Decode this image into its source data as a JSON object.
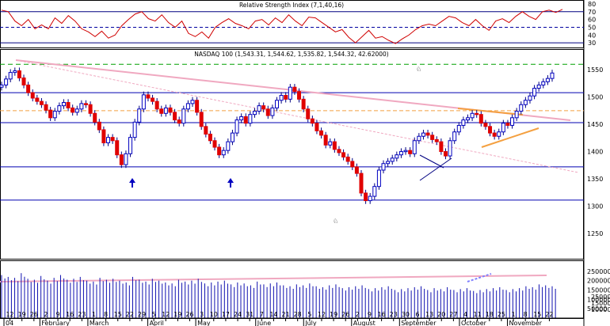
{
  "chart_data": [
    {
      "type": "line",
      "title": "Relative Strength Index (7,1,40,16)",
      "ylim": [
        25,
        82
      ],
      "y_ticks": [
        80,
        70,
        60,
        50,
        40,
        30
      ],
      "reference_lines": [
        70,
        50,
        30
      ],
      "series": [
        {
          "values": [
            72,
            70,
            58,
            52,
            60,
            48,
            53,
            48,
            62,
            55,
            65,
            58,
            48,
            44,
            38,
            45,
            36,
            40,
            52,
            60,
            67,
            70,
            61,
            58,
            66,
            56,
            50,
            58,
            42,
            38,
            44,
            36,
            50,
            56,
            61,
            55,
            52,
            48,
            58,
            60,
            53,
            62,
            56,
            66,
            58,
            52,
            63,
            62,
            56,
            50,
            44,
            47,
            37,
            30,
            38,
            46,
            36,
            38,
            33,
            29,
            35,
            40,
            47,
            52,
            54,
            52,
            58,
            64,
            62,
            56,
            52,
            60,
            52,
            46,
            58,
            61,
            56,
            64,
            70,
            64,
            60,
            70,
            72,
            69,
            73
          ]
        }
      ]
    },
    {
      "type": "candlestick",
      "title": "NASDAQ 100 (1,543.31, 1,544.62, 1,535.82, 1,544.32, 42.62000)",
      "ylim": [
        1205,
        1585
      ],
      "y_ticks": [
        1550,
        1500,
        1450,
        1400,
        1350,
        1300,
        1250
      ],
      "horizontal_lines": [
        1560,
        1508,
        1475,
        1453,
        1372,
        1311
      ],
      "annotations": [
        {
          "type": "up-arrow",
          "month": "March",
          "day": "22"
        },
        {
          "type": "up-arrow",
          "month": "May",
          "day": "10"
        },
        {
          "type": "bull-icon",
          "month": "September"
        },
        {
          "type": "bear-icon",
          "month": "August"
        }
      ],
      "close_values": [
        1522,
        1533,
        1545,
        1548,
        1535,
        1522,
        1508,
        1498,
        1492,
        1486,
        1476,
        1462,
        1474,
        1484,
        1490,
        1480,
        1472,
        1478,
        1488,
        1486,
        1470,
        1454,
        1440,
        1416,
        1426,
        1420,
        1394,
        1376,
        1396,
        1426,
        1454,
        1478,
        1504,
        1498,
        1492,
        1478,
        1470,
        1480,
        1472,
        1458,
        1452,
        1478,
        1488,
        1494,
        1472,
        1446,
        1432,
        1420,
        1408,
        1394,
        1402,
        1418,
        1434,
        1458,
        1464,
        1452,
        1468,
        1474,
        1484,
        1478,
        1466,
        1480,
        1494,
        1503,
        1496,
        1518,
        1510,
        1496,
        1478,
        1460,
        1452,
        1438,
        1430,
        1412,
        1418,
        1404,
        1398,
        1390,
        1382,
        1372,
        1360,
        1324,
        1310,
        1318,
        1336,
        1366,
        1378,
        1382,
        1388,
        1394,
        1400,
        1402,
        1396,
        1420,
        1428,
        1434,
        1430,
        1422,
        1418,
        1400,
        1392,
        1420,
        1436,
        1448,
        1458,
        1462,
        1470,
        1468,
        1452,
        1446,
        1434,
        1428,
        1436,
        1452,
        1448,
        1462,
        1474,
        1486,
        1494,
        1502,
        1516,
        1522,
        1528,
        1534,
        1544
      ]
    },
    {
      "type": "bar",
      "title": "Volume",
      "ylim": [
        0,
        300000
      ],
      "y_ticks": [
        250000,
        200000,
        150000,
        100000,
        50000
      ],
      "extra_ticks": [
        25000,
        15000,
        10000
      ],
      "values": [
        230000,
        220000,
        215000,
        240000,
        210000,
        205000,
        225000,
        200000,
        215000,
        230000,
        205000,
        210000,
        220000,
        200000,
        195000,
        215000,
        205000,
        210000,
        200000,
        190000,
        220000,
        205000,
        195000,
        210000,
        200000,
        190000,
        185000,
        205000,
        195000,
        200000,
        210000,
        185000,
        190000,
        195000,
        200000,
        180000,
        190000,
        185000,
        175000,
        195000,
        180000,
        185000,
        190000,
        175000,
        170000,
        180000,
        175000,
        185000,
        170000,
        165000,
        175000,
        180000,
        160000,
        165000,
        170000,
        175000,
        155000,
        160000,
        165000,
        170000,
        150000,
        155000,
        160000,
        165000,
        170000,
        150000,
        160000,
        155000,
        165000,
        150000,
        155000,
        160000,
        145000,
        150000,
        155000,
        160000,
        165000,
        150000,
        155000,
        160000,
        170000,
        165000,
        180000,
        175000,
        170000
      ]
    }
  ],
  "x_axis": {
    "day_labels": [
      "12",
      "19",
      "26",
      "2",
      "9",
      "16",
      "23",
      "1",
      "8",
      "15",
      "22",
      "29",
      "5",
      "12",
      "19",
      "26",
      "3",
      "10",
      "17",
      "24",
      "31",
      "7",
      "14",
      "21",
      "28",
      "5",
      "12",
      "19",
      "26",
      "2",
      "9",
      "16",
      "23",
      "30",
      "6",
      "13",
      "20",
      "27",
      "4",
      "11",
      "18",
      "25",
      "1",
      "8",
      "15",
      "22"
    ],
    "month_labels": [
      {
        "label": "04",
        "day": "12"
      },
      {
        "label": "February",
        "day": "2"
      },
      {
        "label": "March",
        "day": "1"
      },
      {
        "label": "April",
        "day": "5"
      },
      {
        "label": "May",
        "day": "3"
      },
      {
        "label": "June",
        "day": "31"
      },
      {
        "label": "July",
        "day": "5"
      },
      {
        "label": "August",
        "day": "2"
      },
      {
        "label": "September",
        "day": "30"
      },
      {
        "label": "October",
        "day": "4"
      },
      {
        "label": "November",
        "day": "1"
      }
    ]
  }
}
